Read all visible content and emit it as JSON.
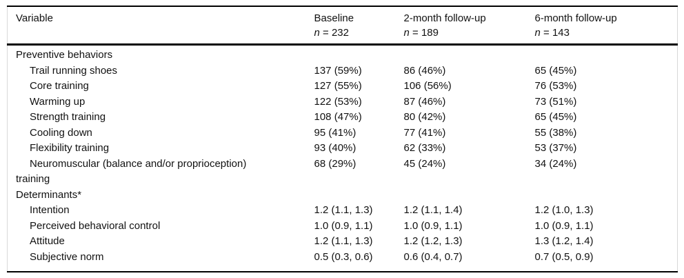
{
  "table": {
    "header": {
      "variable_label": "Variable",
      "columns": [
        {
          "label": "Baseline",
          "n_symbol": "n",
          "n_value": " = 232"
        },
        {
          "label": "2-month follow-up",
          "n_symbol": "n",
          "n_value": " = 189"
        },
        {
          "label": "6-month follow-up",
          "n_symbol": "n",
          "n_value": " = 143"
        }
      ]
    },
    "rows": [
      {
        "type": "section",
        "label": "Preventive behaviors",
        "values": [
          "",
          "",
          ""
        ]
      },
      {
        "type": "item",
        "label": "Trail running shoes",
        "values": [
          "137 (59%)",
          "86 (46%)",
          "65 (45%)"
        ]
      },
      {
        "type": "item",
        "label": "Core training",
        "values": [
          "127 (55%)",
          "106 (56%)",
          "76 (53%)"
        ]
      },
      {
        "type": "item",
        "label": "Warming up",
        "values": [
          "122 (53%)",
          "87 (46%)",
          "73 (51%)"
        ]
      },
      {
        "type": "item",
        "label": "Strength training",
        "values": [
          "108 (47%)",
          "80 (42%)",
          "65 (45%)"
        ]
      },
      {
        "type": "item",
        "label": "Cooling down",
        "values": [
          "95 (41%)",
          "77 (41%)",
          "55 (38%)"
        ]
      },
      {
        "type": "item",
        "label": "Flexibility training",
        "values": [
          "93 (40%)",
          "62 (33%)",
          "53 (37%)"
        ]
      },
      {
        "type": "item",
        "label": "Neuromuscular (balance and/or proprioception)\ntraining",
        "values": [
          "68 (29%)",
          "45 (24%)",
          "34 (24%)"
        ]
      },
      {
        "type": "section",
        "label": "Determinants*",
        "values": [
          "",
          "",
          ""
        ]
      },
      {
        "type": "item",
        "label": "Intention",
        "values": [
          "1.2 (1.1, 1.3)",
          "1.2 (1.1, 1.4)",
          "1.2 (1.0, 1.3)"
        ]
      },
      {
        "type": "item",
        "label": "Perceived behavioral control",
        "values": [
          "1.0 (0.9, 1.1)",
          "1.0 (0.9, 1.1)",
          "1.0 (0.9, 1.1)"
        ]
      },
      {
        "type": "item",
        "label": "Attitude",
        "values": [
          "1.2 (1.1, 1.3)",
          "1.2 (1.2, 1.3)",
          "1.3 (1.2, 1.4)"
        ]
      },
      {
        "type": "item",
        "label": "Subjective norm",
        "values": [
          "0.5 (0.3, 0.6)",
          "0.6 (0.4, 0.7)",
          "0.7 (0.5, 0.9)"
        ]
      }
    ],
    "appearance": {
      "rule_color": "#000000",
      "side_border_color": "#d8d8d8",
      "text_color": "#111111"
    }
  }
}
